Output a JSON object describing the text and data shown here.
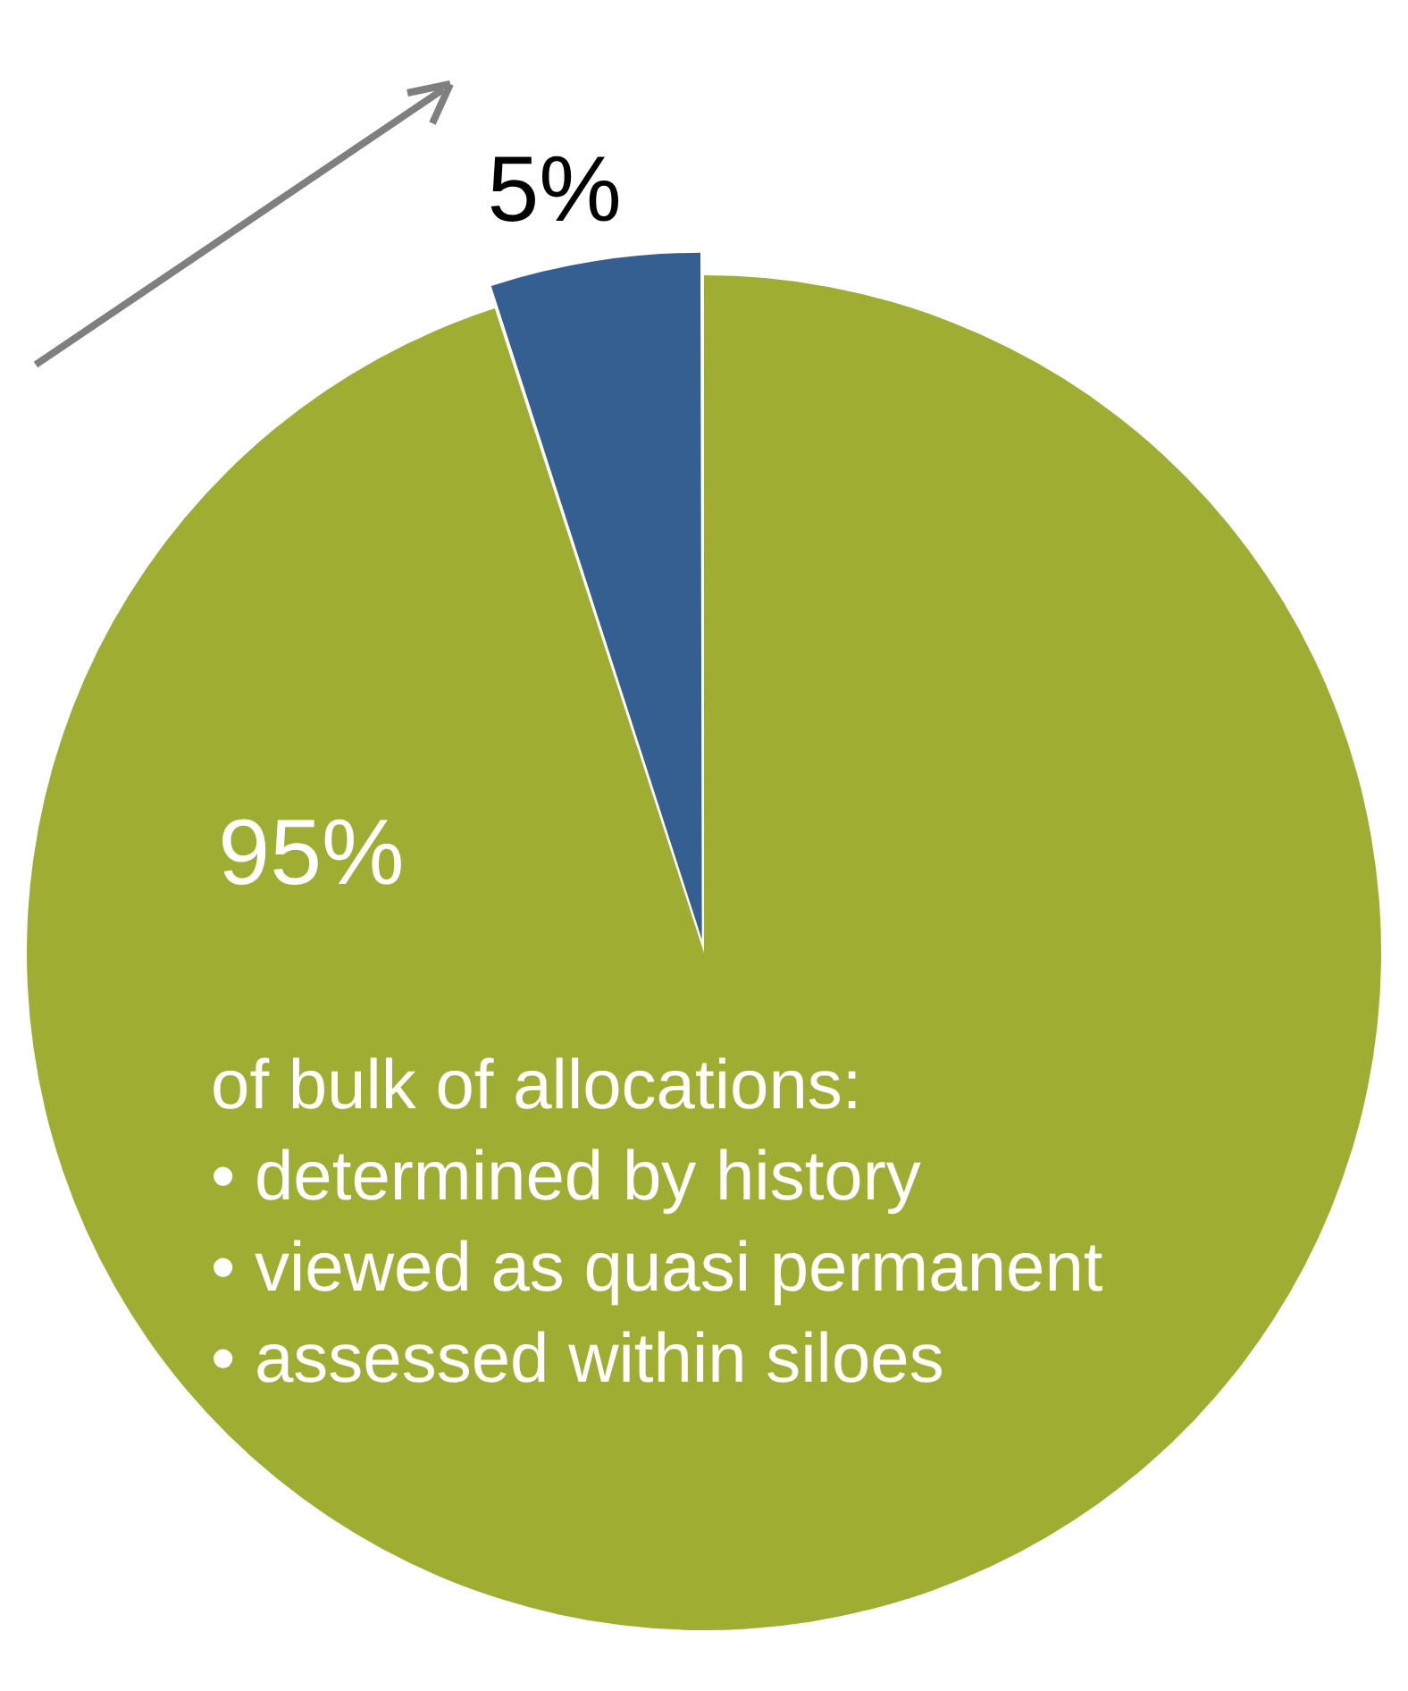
{
  "chart_data": {
    "type": "pie",
    "categories": [
      null,
      null
    ],
    "values": [
      95,
      5
    ],
    "colors": [
      "#9fad33",
      "#355f90"
    ],
    "value_labels": [
      "95%",
      "5%"
    ],
    "legend": false,
    "annotations": [
      "of bulk of allocations:",
      "• determined by history",
      "• viewed as quasi permanent",
      "• assessed within siloes"
    ]
  }
}
